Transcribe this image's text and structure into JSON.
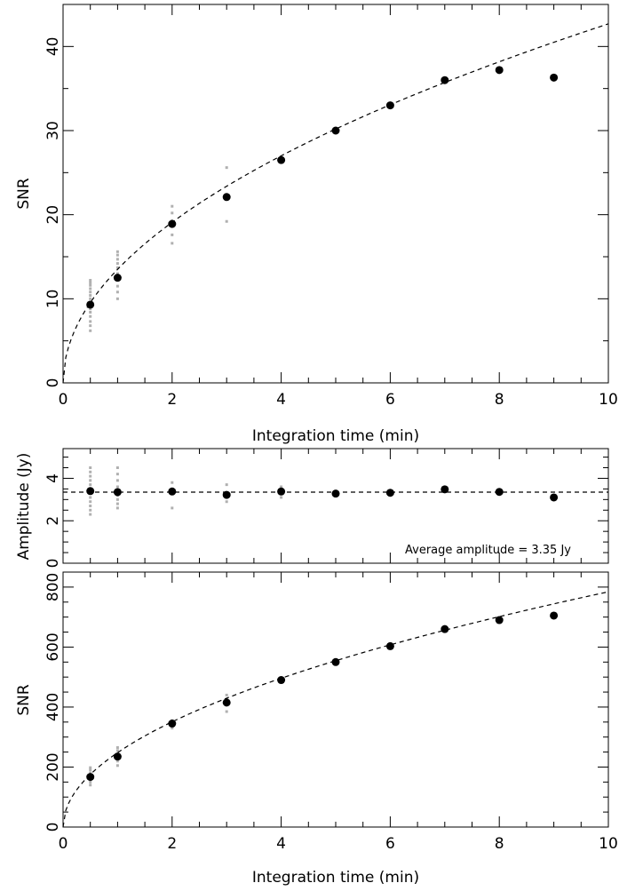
{
  "chart_data": [
    {
      "type": "scatter",
      "title": "",
      "xlabel": "Integration time (min)",
      "ylabel": "SNR",
      "xlim": [
        0,
        10
      ],
      "ylim": [
        0,
        45
      ],
      "xticks": [
        "0",
        "2",
        "4",
        "6",
        "8",
        "10"
      ],
      "yticks": [
        "0",
        "10",
        "20",
        "30",
        "40"
      ],
      "grid": false,
      "series": [
        {
          "role": "mean",
          "color": "#000000",
          "x": [
            0.5,
            1,
            2,
            3,
            4,
            5,
            6,
            7,
            8,
            9
          ],
          "y": [
            9.3,
            12.5,
            18.9,
            22.1,
            26.5,
            30.0,
            33.0,
            36.0,
            37.2,
            36.3
          ]
        },
        {
          "role": "individual",
          "color": "#b0b0b0",
          "x": [
            0.5,
            0.5,
            0.5,
            0.5,
            0.5,
            0.5,
            0.5,
            0.5,
            0.5,
            0.5,
            0.5,
            0.5,
            0.5,
            0.5,
            0.5,
            1,
            1,
            1,
            1,
            1,
            1,
            1,
            1,
            1,
            1,
            2,
            2,
            2,
            2,
            2,
            2,
            3,
            3,
            4,
            4
          ],
          "y": [
            6.2,
            6.8,
            7.3,
            7.9,
            8.4,
            8.8,
            9.2,
            9.6,
            10.0,
            10.4,
            10.8,
            11.2,
            11.6,
            11.9,
            12.2,
            10.0,
            10.8,
            11.5,
            12.3,
            13.0,
            13.7,
            14.2,
            14.7,
            15.2,
            15.6,
            16.6,
            17.6,
            18.6,
            19.3,
            20.2,
            21.0,
            19.2,
            25.6,
            26.2,
            26.8
          ]
        },
        {
          "role": "fit",
          "style": "dashed",
          "color": "#000000",
          "formula": "y = 13.5 * sqrt(x)"
        }
      ]
    },
    {
      "type": "scatter",
      "title": "",
      "xlabel": "",
      "ylabel": "Amplitude (Jy)",
      "xlim": [
        0,
        10
      ],
      "ylim": [
        0,
        5.4
      ],
      "yticks": [
        "0",
        "2",
        "4"
      ],
      "grid": false,
      "annotation": "Average amplitude = 3.35 Jy",
      "series": [
        {
          "role": "mean",
          "color": "#000000",
          "x": [
            0.5,
            1,
            2,
            3,
            4,
            5,
            6,
            7,
            8,
            9
          ],
          "y": [
            3.4,
            3.35,
            3.38,
            3.22,
            3.38,
            3.28,
            3.32,
            3.48,
            3.36,
            3.1
          ]
        },
        {
          "role": "individual",
          "color": "#b0b0b0",
          "x": [
            0.5,
            0.5,
            0.5,
            0.5,
            0.5,
            0.5,
            0.5,
            0.5,
            0.5,
            0.5,
            0.5,
            0.5,
            1,
            1,
            1,
            1,
            1,
            1,
            1,
            1,
            2,
            2,
            2,
            3,
            3,
            3,
            4,
            4
          ],
          "y": [
            2.5,
            2.7,
            2.9,
            3.1,
            3.3,
            3.5,
            3.7,
            3.9,
            4.1,
            4.3,
            4.5,
            2.3,
            2.6,
            2.8,
            3.0,
            3.2,
            3.6,
            3.9,
            4.2,
            4.5,
            2.6,
            3.5,
            3.8,
            2.9,
            3.1,
            3.7,
            3.1,
            3.6
          ]
        },
        {
          "role": "average-line",
          "style": "dashed",
          "color": "#000000",
          "y": 3.35
        }
      ]
    },
    {
      "type": "scatter",
      "title": "",
      "xlabel": "Integration time (min)",
      "ylabel": "SNR",
      "xlim": [
        0,
        10
      ],
      "ylim": [
        0,
        850
      ],
      "xticks": [
        "0",
        "2",
        "4",
        "6",
        "8",
        "10"
      ],
      "yticks": [
        "0",
        "200",
        "400",
        "600",
        "800"
      ],
      "grid": false,
      "series": [
        {
          "role": "mean",
          "color": "#000000",
          "x": [
            0.5,
            1,
            2,
            3,
            4,
            5,
            6,
            7,
            8,
            9
          ],
          "y": [
            167,
            235,
            345,
            415,
            490,
            550,
            603,
            660,
            690,
            705
          ]
        },
        {
          "role": "individual",
          "color": "#b0b0b0",
          "x": [
            0.5,
            0.5,
            0.5,
            0.5,
            0.5,
            0.5,
            0.5,
            1,
            1,
            1,
            1,
            1,
            2,
            2,
            3,
            3,
            3
          ],
          "y": [
            140,
            150,
            160,
            170,
            180,
            190,
            198,
            205,
            220,
            240,
            255,
            265,
            330,
            355,
            385,
            425,
            440
          ]
        },
        {
          "role": "fit",
          "style": "dashed",
          "color": "#000000",
          "formula": "y = 248 * sqrt(x)"
        }
      ]
    }
  ]
}
